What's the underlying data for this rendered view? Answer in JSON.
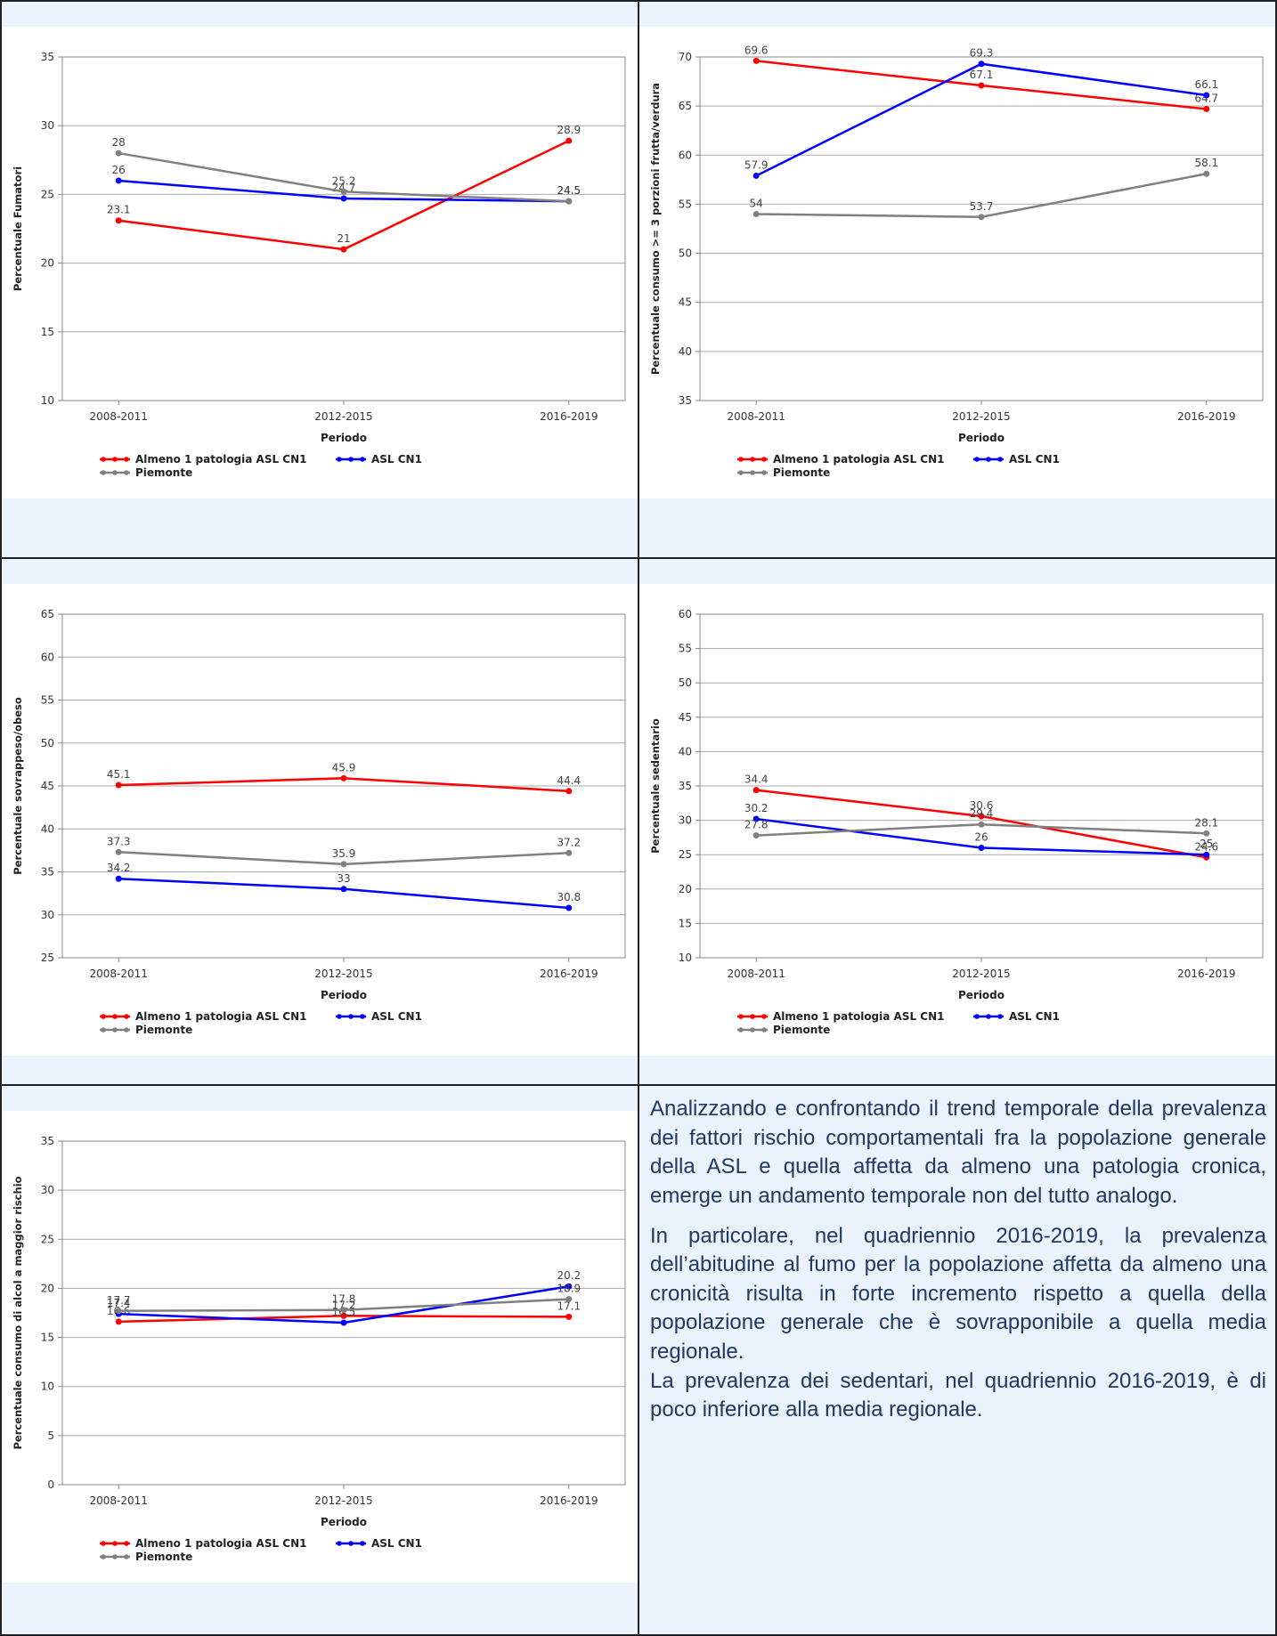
{
  "chart_data": [
    {
      "type": "line",
      "y_label": "Percentuale Fumatori",
      "x_label": "Periodo",
      "categories": [
        "2008-2011",
        "2012-2015",
        "2016-2019"
      ],
      "ylim": [
        10,
        35
      ],
      "yticks": [
        10,
        15,
        20,
        25,
        30,
        35
      ],
      "grid": true,
      "series": [
        {
          "name": "Almeno 1 patologia ASL CN1",
          "color": "#ff0000",
          "values": [
            23.1,
            21,
            28.9
          ]
        },
        {
          "name": "ASL CN1",
          "color": "#0000ff",
          "values": [
            26,
            24.7,
            24.5
          ]
        },
        {
          "name": "Piemonte",
          "color": "#808080",
          "values": [
            28,
            25.2,
            24.5
          ]
        }
      ]
    },
    {
      "type": "line",
      "y_label": "Percentuale consumo >= 3 porzioni frutta/verdura",
      "x_label": "Periodo",
      "categories": [
        "2008-2011",
        "2012-2015",
        "2016-2019"
      ],
      "ylim": [
        35,
        70
      ],
      "yticks": [
        35,
        40,
        45,
        50,
        55,
        60,
        65,
        70
      ],
      "grid": true,
      "series": [
        {
          "name": "Almeno 1 patologia ASL CN1",
          "color": "#ff0000",
          "values": [
            69.6,
            67.1,
            64.7
          ]
        },
        {
          "name": "ASL CN1",
          "color": "#0000ff",
          "values": [
            57.9,
            69.3,
            66.1
          ]
        },
        {
          "name": "Piemonte",
          "color": "#808080",
          "values": [
            54,
            53.7,
            58.1
          ]
        }
      ]
    },
    {
      "type": "line",
      "y_label": "Percentuale sovrappeso/obeso",
      "x_label": "Periodo",
      "categories": [
        "2008-2011",
        "2012-2015",
        "2016-2019"
      ],
      "ylim": [
        25,
        65
      ],
      "yticks": [
        25,
        30,
        35,
        40,
        45,
        50,
        55,
        60,
        65
      ],
      "grid": true,
      "series": [
        {
          "name": "Almeno 1 patologia ASL CN1",
          "color": "#ff0000",
          "values": [
            45.1,
            45.9,
            44.4
          ]
        },
        {
          "name": "ASL CN1",
          "color": "#0000ff",
          "values": [
            34.2,
            33,
            30.8
          ]
        },
        {
          "name": "Piemonte",
          "color": "#808080",
          "values": [
            37.3,
            35.9,
            37.2
          ]
        }
      ]
    },
    {
      "type": "line",
      "y_label": "Percentuale sedentario",
      "x_label": "Periodo",
      "categories": [
        "2008-2011",
        "2012-2015",
        "2016-2019"
      ],
      "ylim": [
        10,
        60
      ],
      "yticks": [
        10,
        15,
        20,
        25,
        30,
        35,
        40,
        45,
        50,
        55,
        60
      ],
      "grid": true,
      "series": [
        {
          "name": "Almeno 1 patologia ASL CN1",
          "color": "#ff0000",
          "values": [
            34.4,
            30.6,
            24.6
          ]
        },
        {
          "name": "ASL CN1",
          "color": "#0000ff",
          "values": [
            30.2,
            26,
            25
          ]
        },
        {
          "name": "Piemonte",
          "color": "#808080",
          "values": [
            27.8,
            29.4,
            28.1
          ]
        }
      ]
    },
    {
      "type": "line",
      "y_label": "Percentuale consumo di alcol a maggior rischio",
      "x_label": "Periodo",
      "categories": [
        "2008-2011",
        "2012-2015",
        "2016-2019"
      ],
      "ylim": [
        0,
        35
      ],
      "yticks": [
        0,
        5,
        10,
        15,
        20,
        25,
        30,
        35
      ],
      "grid": true,
      "series": [
        {
          "name": "Almeno 1 patologia ASL CN1",
          "color": "#ff0000",
          "values": [
            16.6,
            17.2,
            17.1
          ]
        },
        {
          "name": "ASL CN1",
          "color": "#0000ff",
          "values": [
            17.4,
            16.5,
            20.2
          ]
        },
        {
          "name": "Piemonte",
          "color": "#808080",
          "values": [
            17.7,
            17.8,
            18.9
          ]
        }
      ]
    }
  ],
  "text": {
    "paragraphs": [
      "Analizzando e confrontando il trend temporale della prevalenza dei fattori rischio comportamentali fra la popolazione generale della ASL e quella affetta da almeno una patologia cronica, emerge un andamento temporale non del tutto analogo.",
      "In particolare, nel quadriennio 2016-2019, la prevalenza dell’abitudine al fumo per la popolazione affetta da almeno una cronicità risulta in forte incremento rispetto a quella della popolazione generale che è sovrapponibile a quella media regionale.",
      "La prevalenza dei sedentari, nel quadriennio 2016-2019, è di poco inferiore alla media regionale."
    ]
  }
}
